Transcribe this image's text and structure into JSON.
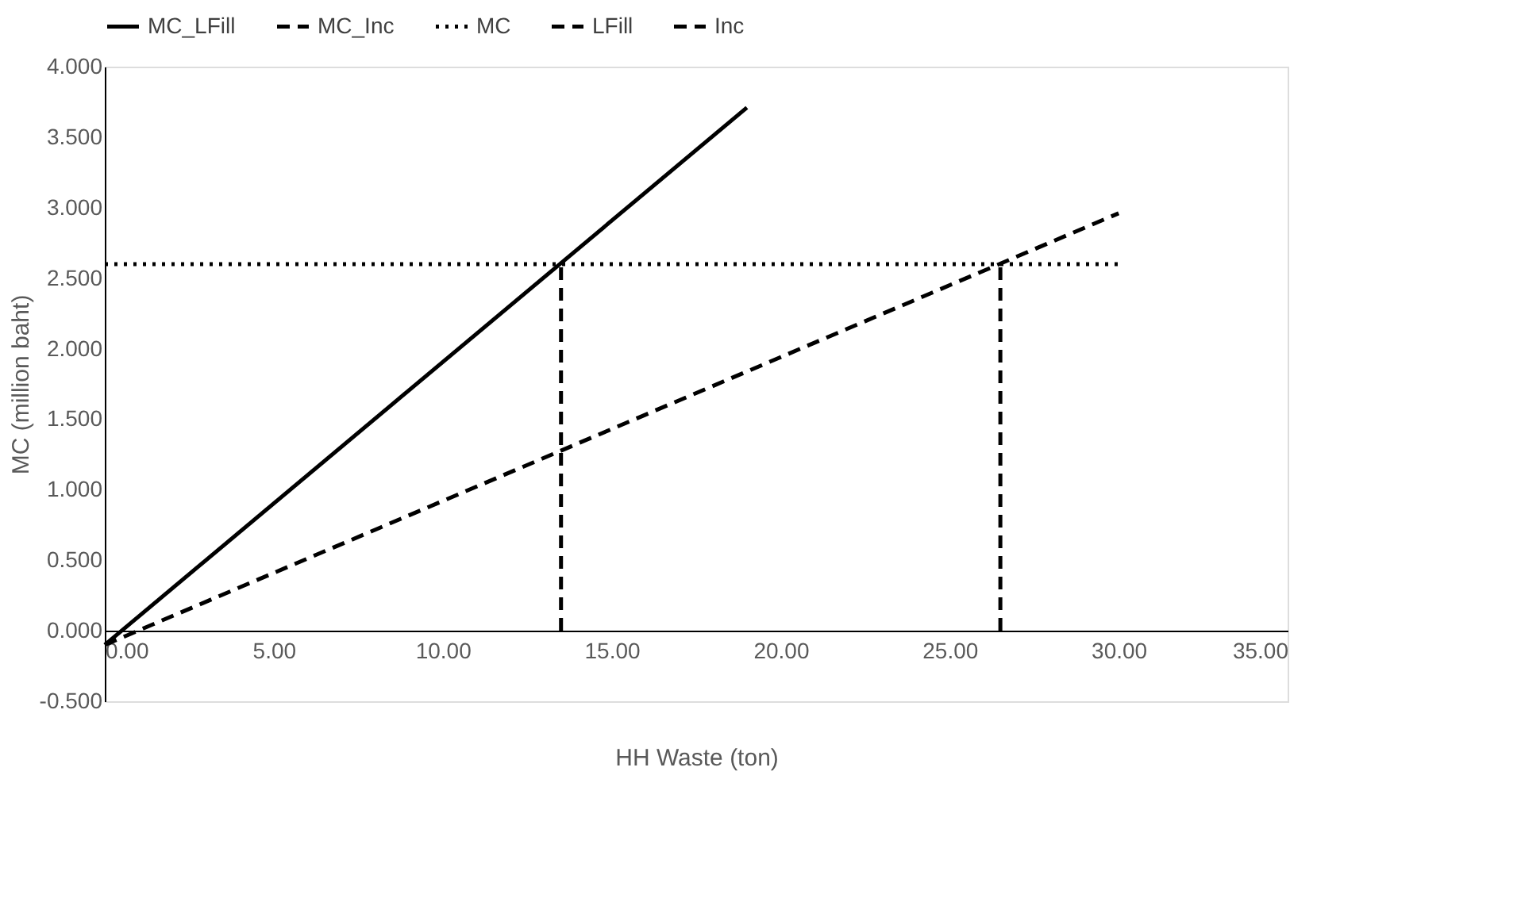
{
  "chart_data": {
    "type": "line",
    "xlabel": "HH Waste (ton)",
    "ylabel": "MC (million baht)",
    "series": [
      {
        "name": "MC_LFill",
        "color": "#000000",
        "line_style": "solid",
        "x": [
          0,
          19.0
        ],
        "values": [
          -0.1,
          3.71
        ]
      },
      {
        "name": "MC_Inc",
        "color": "#000000",
        "line_style": "dashed",
        "x": [
          0,
          30.0
        ],
        "values": [
          -0.1,
          2.96
        ]
      },
      {
        "name": "MC",
        "color": "#000000",
        "line_style": "dotted",
        "x": [
          0,
          30.0
        ],
        "values": [
          2.6,
          2.6
        ]
      },
      {
        "name": "LFill",
        "color": "#000000",
        "line_style": "dashed",
        "x": [
          13.5,
          13.5
        ],
        "values": [
          0,
          2.6
        ]
      },
      {
        "name": "Inc",
        "color": "#000000",
        "line_style": "dashed",
        "x": [
          26.5,
          26.5
        ],
        "values": [
          0,
          2.6
        ]
      }
    ],
    "xlim": [
      0,
      35
    ],
    "xticks": [
      {
        "value": 0,
        "label": "0.00"
      },
      {
        "value": 5,
        "label": "5.00"
      },
      {
        "value": 10,
        "label": "10.00"
      },
      {
        "value": 15,
        "label": "15.00"
      },
      {
        "value": 20,
        "label": "20.00"
      },
      {
        "value": 25,
        "label": "25.00"
      },
      {
        "value": 30,
        "label": "30.00"
      },
      {
        "value": 35,
        "label": "35.00"
      }
    ],
    "ylim": [
      -0.5,
      4.0
    ],
    "yticks": [
      {
        "value": -0.5,
        "label": "-0.500"
      },
      {
        "value": 0,
        "label": "0.000"
      },
      {
        "value": 0.5,
        "label": "0.500"
      },
      {
        "value": 1.0,
        "label": "1.000"
      },
      {
        "value": 1.5,
        "label": "1.500"
      },
      {
        "value": 2.0,
        "label": "2.000"
      },
      {
        "value": 2.5,
        "label": "2.500"
      },
      {
        "value": 3.0,
        "label": "3.000"
      },
      {
        "value": 3.5,
        "label": "3.500"
      },
      {
        "value": 4.0,
        "label": "4.000"
      }
    ],
    "grid": false,
    "legend": "top",
    "marker": "none"
  }
}
